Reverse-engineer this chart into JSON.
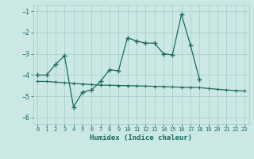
{
  "xlabel": "Humidex (Indice chaleur)",
  "background_color": "#cce8e4",
  "grid_color": "#aacfcb",
  "line_color": "#1a6b60",
  "x_range": [
    -0.5,
    23.5
  ],
  "y_range": [
    -6.3,
    -0.7
  ],
  "yticks": [
    -6,
    -5,
    -4,
    -3,
    -2,
    -1
  ],
  "xticks": [
    0,
    1,
    2,
    3,
    4,
    5,
    6,
    7,
    8,
    9,
    10,
    11,
    12,
    13,
    14,
    15,
    16,
    17,
    18,
    19,
    20,
    21,
    22,
    23
  ],
  "line1_x": [
    0,
    1,
    2,
    3,
    4,
    5,
    6,
    7,
    8,
    9,
    10,
    11,
    12,
    13,
    14,
    15,
    16,
    17,
    18
  ],
  "line1_y": [
    -4.0,
    -4.0,
    -3.5,
    -3.1,
    -5.5,
    -4.8,
    -4.7,
    -4.3,
    -3.75,
    -3.8,
    -2.25,
    -2.4,
    -2.5,
    -2.5,
    -3.0,
    -3.05,
    -1.15,
    -2.6,
    -4.2
  ],
  "line2_x": [
    0,
    1,
    2,
    3,
    4,
    5,
    6,
    7,
    8,
    9,
    10,
    11,
    12,
    13,
    14,
    15,
    16,
    17,
    18,
    19,
    20,
    21,
    22,
    23
  ],
  "line2_y": [
    -4.3,
    -4.3,
    -4.33,
    -4.36,
    -4.39,
    -4.42,
    -4.45,
    -4.47,
    -4.48,
    -4.49,
    -4.5,
    -4.51,
    -4.52,
    -4.53,
    -4.54,
    -4.56,
    -4.57,
    -4.58,
    -4.59,
    -4.63,
    -4.67,
    -4.7,
    -4.73,
    -4.75
  ]
}
